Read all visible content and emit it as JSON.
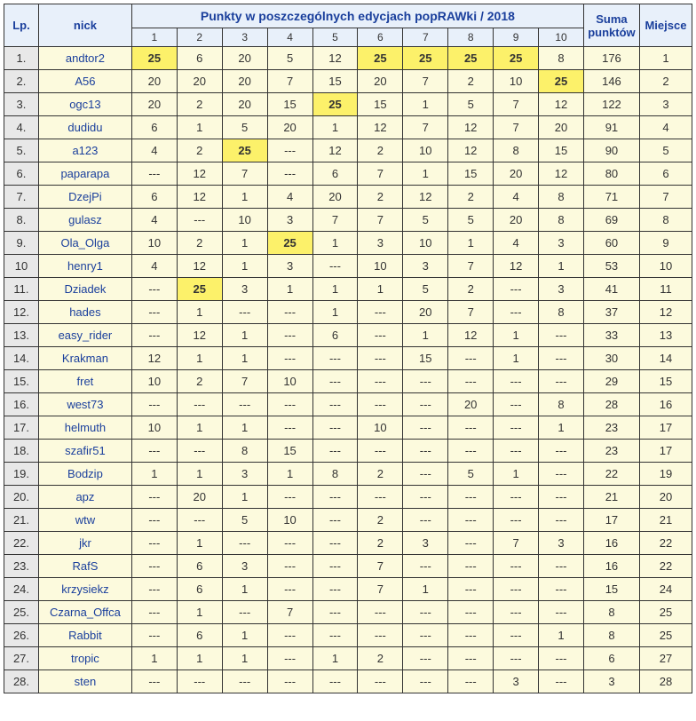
{
  "headers": {
    "lp": "Lp.",
    "nick": "nick",
    "group": "Punkty w poszczególnych edycjach popRAWki / 2018",
    "sum": "Suma punktów",
    "place": "Miejsce",
    "editions": [
      "1",
      "2",
      "3",
      "4",
      "5",
      "6",
      "7",
      "8",
      "9",
      "10"
    ]
  },
  "dash": "---",
  "highlight_value": 25,
  "rows": [
    {
      "lp": "1.",
      "nick": "andtor2",
      "scores": [
        25,
        6,
        20,
        5,
        12,
        25,
        25,
        25,
        25,
        8
      ],
      "sum": 176,
      "place": 1
    },
    {
      "lp": "2.",
      "nick": "A56",
      "scores": [
        20,
        20,
        20,
        7,
        15,
        20,
        7,
        2,
        10,
        25
      ],
      "sum": 146,
      "place": 2
    },
    {
      "lp": "3.",
      "nick": "ogc13",
      "scores": [
        20,
        2,
        20,
        15,
        25,
        15,
        1,
        5,
        7,
        12
      ],
      "sum": 122,
      "place": 3
    },
    {
      "lp": "4.",
      "nick": "dudidu",
      "scores": [
        6,
        1,
        5,
        20,
        1,
        12,
        7,
        12,
        7,
        20
      ],
      "sum": 91,
      "place": 4
    },
    {
      "lp": "5.",
      "nick": "a123",
      "scores": [
        4,
        2,
        25,
        null,
        12,
        2,
        10,
        12,
        8,
        15
      ],
      "sum": 90,
      "place": 5
    },
    {
      "lp": "6.",
      "nick": "paparapa",
      "scores": [
        null,
        12,
        7,
        null,
        6,
        7,
        1,
        15,
        20,
        12
      ],
      "sum": 80,
      "place": 6
    },
    {
      "lp": "7.",
      "nick": "DzejPi",
      "scores": [
        6,
        12,
        1,
        4,
        20,
        2,
        12,
        2,
        4,
        8
      ],
      "sum": 71,
      "place": 7
    },
    {
      "lp": "8.",
      "nick": "gulasz",
      "scores": [
        4,
        null,
        10,
        3,
        7,
        7,
        5,
        5,
        20,
        8
      ],
      "sum": 69,
      "place": 8
    },
    {
      "lp": "9.",
      "nick": "Ola_Olga",
      "scores": [
        10,
        2,
        1,
        25,
        1,
        3,
        10,
        1,
        4,
        3
      ],
      "sum": 60,
      "place": 9
    },
    {
      "lp": "10",
      "nick": "henry1",
      "scores": [
        4,
        12,
        1,
        3,
        null,
        10,
        3,
        7,
        12,
        1
      ],
      "sum": 53,
      "place": 10
    },
    {
      "lp": "11.",
      "nick": "Dziadek",
      "scores": [
        null,
        25,
        3,
        1,
        1,
        1,
        5,
        2,
        null,
        3
      ],
      "sum": 41,
      "place": 11
    },
    {
      "lp": "12.",
      "nick": "hades",
      "scores": [
        null,
        1,
        null,
        null,
        1,
        null,
        20,
        7,
        null,
        8
      ],
      "sum": 37,
      "place": 12
    },
    {
      "lp": "13.",
      "nick": "easy_rider",
      "scores": [
        null,
        12,
        1,
        null,
        6,
        null,
        1,
        12,
        1,
        null
      ],
      "sum": 33,
      "place": 13
    },
    {
      "lp": "14.",
      "nick": "Krakman",
      "scores": [
        12,
        1,
        1,
        null,
        null,
        null,
        15,
        null,
        1,
        null
      ],
      "sum": 30,
      "place": 14
    },
    {
      "lp": "15.",
      "nick": "fret",
      "scores": [
        10,
        2,
        7,
        10,
        null,
        null,
        null,
        null,
        null,
        null
      ],
      "sum": 29,
      "place": 15
    },
    {
      "lp": "16.",
      "nick": "west73",
      "scores": [
        null,
        null,
        null,
        null,
        null,
        null,
        null,
        20,
        null,
        8
      ],
      "sum": 28,
      "place": 16
    },
    {
      "lp": "17.",
      "nick": "helmuth",
      "scores": [
        10,
        1,
        1,
        null,
        null,
        10,
        null,
        null,
        null,
        1
      ],
      "sum": 23,
      "place": 17
    },
    {
      "lp": "18.",
      "nick": "szafir51",
      "scores": [
        null,
        null,
        8,
        15,
        null,
        null,
        null,
        null,
        null,
        null
      ],
      "sum": 23,
      "place": 17
    },
    {
      "lp": "19.",
      "nick": "Bodzip",
      "scores": [
        1,
        1,
        3,
        1,
        8,
        2,
        null,
        5,
        1,
        null
      ],
      "sum": 22,
      "place": 19
    },
    {
      "lp": "20.",
      "nick": "apz",
      "scores": [
        null,
        20,
        1,
        null,
        null,
        null,
        null,
        null,
        null,
        null
      ],
      "sum": 21,
      "place": 20
    },
    {
      "lp": "21.",
      "nick": "wtw",
      "scores": [
        null,
        null,
        5,
        10,
        null,
        2,
        null,
        null,
        null,
        null
      ],
      "sum": 17,
      "place": 21
    },
    {
      "lp": "22.",
      "nick": "jkr",
      "scores": [
        null,
        1,
        null,
        null,
        null,
        2,
        3,
        null,
        7,
        3
      ],
      "sum": 16,
      "place": 22
    },
    {
      "lp": "23.",
      "nick": "RafS",
      "scores": [
        null,
        6,
        3,
        null,
        null,
        7,
        null,
        null,
        null,
        null
      ],
      "sum": 16,
      "place": 22
    },
    {
      "lp": "24.",
      "nick": "krzysiekz",
      "scores": [
        null,
        6,
        1,
        null,
        null,
        7,
        1,
        null,
        null,
        null
      ],
      "sum": 15,
      "place": 24
    },
    {
      "lp": "25.",
      "nick": "Czarna_Offca",
      "scores": [
        null,
        1,
        null,
        7,
        null,
        null,
        null,
        null,
        null,
        null
      ],
      "sum": 8,
      "place": 25
    },
    {
      "lp": "26.",
      "nick": "Rabbit",
      "scores": [
        null,
        6,
        1,
        null,
        null,
        null,
        null,
        null,
        null,
        1
      ],
      "sum": 8,
      "place": 25
    },
    {
      "lp": "27.",
      "nick": "tropic",
      "scores": [
        1,
        1,
        1,
        null,
        1,
        2,
        null,
        null,
        null,
        null
      ],
      "sum": 6,
      "place": 27
    },
    {
      "lp": "28.",
      "nick": "sten",
      "scores": [
        null,
        null,
        null,
        null,
        null,
        null,
        null,
        null,
        3,
        null
      ],
      "sum": 3,
      "place": 28
    }
  ]
}
